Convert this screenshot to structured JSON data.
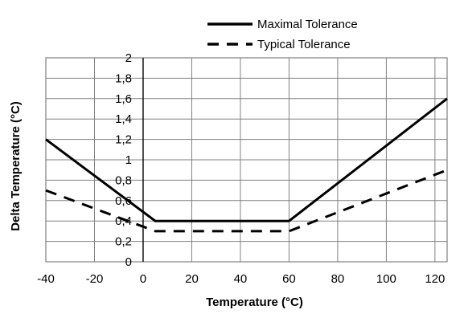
{
  "chart_data": {
    "type": "line",
    "xlabel": "Temperature (°C)",
    "ylabel": "Delta Temperature (°C)",
    "xlim": [
      -40,
      125
    ],
    "ylim": [
      0,
      2
    ],
    "x_ticks": [
      -40,
      -20,
      0,
      20,
      40,
      60,
      80,
      100,
      120
    ],
    "x_tick_labels": [
      "-40",
      "-20",
      "0",
      "20",
      "40",
      "60",
      "80",
      "100",
      "120"
    ],
    "y_ticks": [
      0,
      0.2,
      0.4,
      0.6,
      0.8,
      1,
      1.2,
      1.4,
      1.6,
      1.8,
      2
    ],
    "y_tick_labels": [
      "0",
      "0,2",
      "0,4",
      "0,6",
      "0,8",
      "1",
      "1,2",
      "1,4",
      "1,6",
      "1,8",
      "2"
    ],
    "grid": true,
    "legend_position": "top",
    "series": [
      {
        "name": "Maximal Tolerance",
        "style": "solid",
        "color": "#000000",
        "points": [
          [
            -40,
            1.2
          ],
          [
            5,
            0.4
          ],
          [
            60,
            0.4
          ],
          [
            125,
            1.6
          ]
        ]
      },
      {
        "name": "Typical Tolerance",
        "style": "dashed",
        "color": "#000000",
        "points": [
          [
            -40,
            0.7
          ],
          [
            5,
            0.3
          ],
          [
            60,
            0.3
          ],
          [
            125,
            0.9
          ]
        ]
      }
    ]
  }
}
